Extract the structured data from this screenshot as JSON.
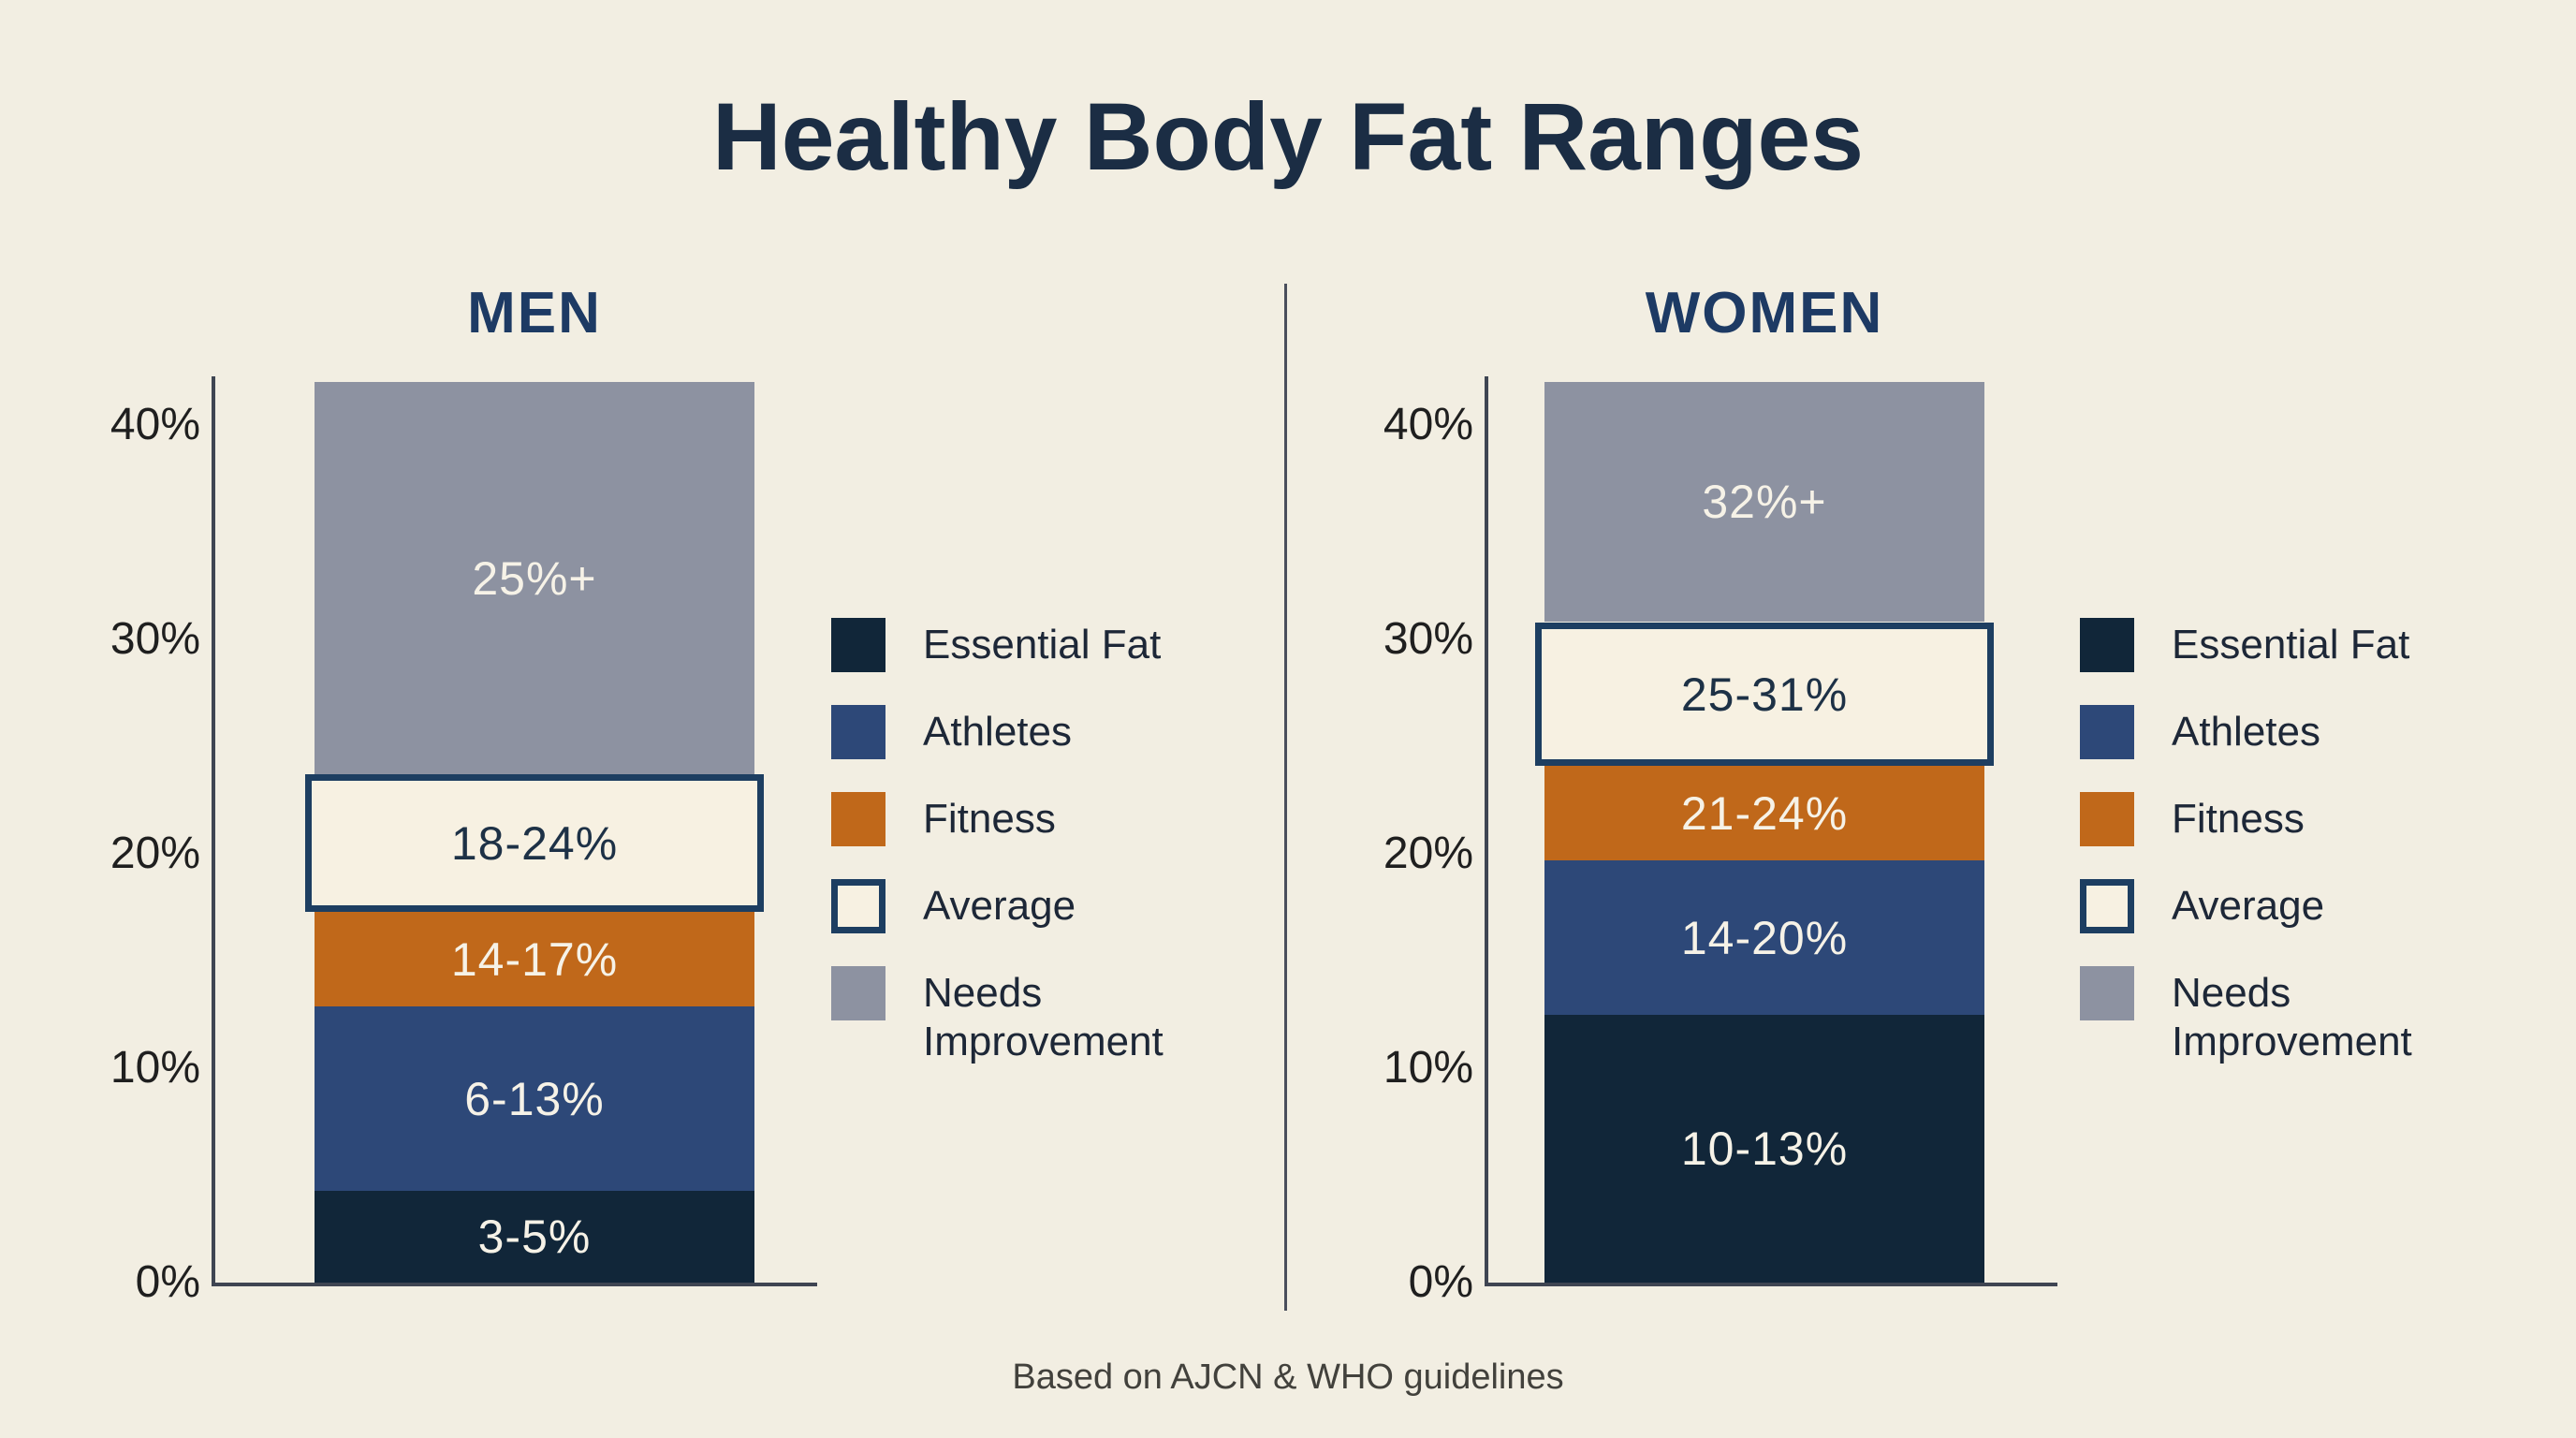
{
  "title": "Healthy Body Fat Ranges",
  "footer": "Based on AJCN & WHO guidelines",
  "colors": {
    "background": "#f2eee2",
    "title": "#1b2d44",
    "header": "#1d3a64",
    "essential": "#112639",
    "athletes": "#2d4878",
    "fitness": "#c0681a",
    "average_fill": "#f7f1e2",
    "average_border": "#1d3e61",
    "needs": "#8d92a1",
    "axis": "#3f4552",
    "divider": "#4a4e5c",
    "tick_text": "#1f1f1f",
    "label_light": "#f6f2e7",
    "label_dark": "#1d3146",
    "legend_text": "#1d2737",
    "footer_text": "#42413c"
  },
  "y_axis": {
    "tick_labels": [
      "40%",
      "30%",
      "20%",
      "10%",
      "0%"
    ],
    "tick_values": [
      40,
      30,
      20,
      10,
      0
    ],
    "max_shown": 42
  },
  "legend": {
    "items": [
      {
        "label": "Essential Fat",
        "color_key": "essential",
        "outlined": false
      },
      {
        "label": "Athletes",
        "color_key": "athletes",
        "outlined": false
      },
      {
        "label": "Fitness",
        "color_key": "fitness",
        "outlined": false
      },
      {
        "label": "Average",
        "color_key": "average_fill",
        "outlined": true
      },
      {
        "label": "Needs Improvement",
        "color_key": "needs",
        "outlined": false
      }
    ]
  },
  "chart_data": {
    "type": "bar",
    "stacked": true,
    "title": "Healthy Body Fat Ranges",
    "subtitle": "Based on AJCN & WHO guidelines",
    "categories": [
      "MEN",
      "WOMEN"
    ],
    "unit": "percent body fat",
    "ylim": [
      0,
      42
    ],
    "yticks": [
      0,
      10,
      20,
      30,
      40
    ],
    "grid": false,
    "legend_position": "right-of-each-bar",
    "series": [
      {
        "name": "Essential Fat",
        "values": [
          4.3,
          12.5
        ],
        "range_labels": [
          "3-5%",
          "10-13%"
        ]
      },
      {
        "name": "Athletes",
        "values": [
          8.6,
          7.2
        ],
        "range_labels": [
          "6-13%",
          "14-20%"
        ]
      },
      {
        "name": "Fitness",
        "values": [
          4.4,
          4.4
        ],
        "range_labels": [
          "14-17%",
          "21-24%"
        ]
      },
      {
        "name": "Average",
        "values": [
          6.4,
          6.7
        ],
        "range_labels": [
          "18-24%",
          "25-31%"
        ]
      },
      {
        "name": "Needs Improvement",
        "values": [
          18.3,
          11.2
        ],
        "range_labels": [
          "25%+",
          "32%+"
        ]
      }
    ]
  },
  "charts": [
    {
      "id": "men",
      "header": "MEN",
      "segments": [
        {
          "category": "Essential Fat",
          "range_label": "3-5%",
          "from": 0,
          "to": 4.3,
          "color_key": "essential",
          "text": "light",
          "outlined": false
        },
        {
          "category": "Athletes",
          "range_label": "6-13%",
          "from": 4.3,
          "to": 12.9,
          "color_key": "athletes",
          "text": "light",
          "outlined": false
        },
        {
          "category": "Fitness",
          "range_label": "14-17%",
          "from": 12.9,
          "to": 17.3,
          "color_key": "fitness",
          "text": "light",
          "outlined": false
        },
        {
          "category": "Average",
          "range_label": "18-24%",
          "from": 17.3,
          "to": 23.7,
          "color_key": "average_fill",
          "text": "dark",
          "outlined": true
        },
        {
          "category": "Needs Improvement",
          "range_label": "25%+",
          "from": 23.7,
          "to": 42,
          "color_key": "needs",
          "text": "light",
          "outlined": false
        }
      ]
    },
    {
      "id": "women",
      "header": "WOMEN",
      "segments": [
        {
          "category": "Essential Fat",
          "range_label": "10-13%",
          "from": 0,
          "to": 12.5,
          "color_key": "essential",
          "text": "light",
          "outlined": false
        },
        {
          "category": "Athletes",
          "range_label": "14-20%",
          "from": 12.5,
          "to": 19.7,
          "color_key": "athletes",
          "text": "light",
          "outlined": false
        },
        {
          "category": "Fitness",
          "range_label": "21-24%",
          "from": 19.7,
          "to": 24.1,
          "color_key": "fitness",
          "text": "light",
          "outlined": false
        },
        {
          "category": "Average",
          "range_label": "25-31%",
          "from": 24.1,
          "to": 30.8,
          "color_key": "average_fill",
          "text": "dark",
          "outlined": true
        },
        {
          "category": "Needs Improvement",
          "range_label": "32%+",
          "from": 30.8,
          "to": 42,
          "color_key": "needs",
          "text": "light",
          "outlined": false
        }
      ]
    }
  ]
}
